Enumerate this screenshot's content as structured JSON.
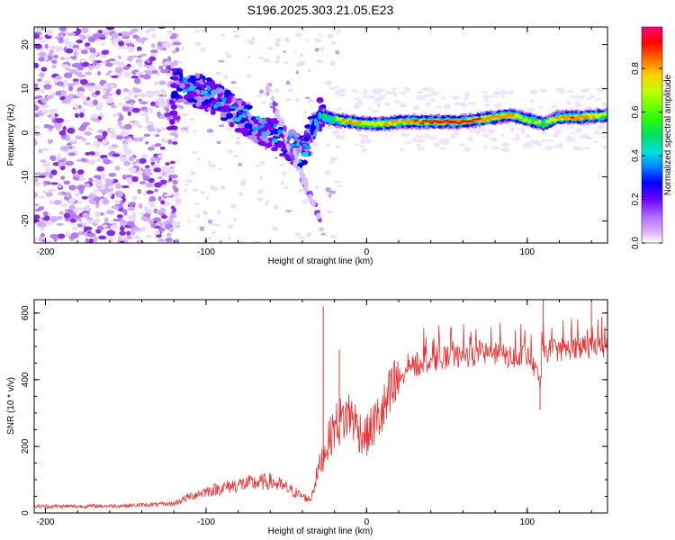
{
  "title": "S196.2025.303.21.05.E23",
  "chart_data": [
    {
      "type": "heatmap",
      "xlabel": "Height of straight line (km)",
      "ylabel": "Frequency (Hz)",
      "xlim": [
        -207,
        150
      ],
      "ylim": [
        -25,
        24
      ],
      "xticks": [
        -200,
        -100,
        0,
        100
      ],
      "yticks": [
        -20,
        -10,
        0,
        10,
        20
      ],
      "colorbar": {
        "label": "Normalized spectral amplitude",
        "range": [
          0,
          0.99
        ],
        "ticks": [
          "0.0",
          "0.2",
          "0.4",
          "0.6",
          "0.8"
        ],
        "tick_values": [
          0,
          0.2,
          0.4,
          0.6,
          0.8
        ]
      },
      "band": [
        {
          "x": -120,
          "f": 11,
          "a": 0.2
        },
        {
          "x": -110,
          "f": 10,
          "a": 0.3
        },
        {
          "x": -100,
          "f": 9,
          "a": 0.35
        },
        {
          "x": -90,
          "f": 7,
          "a": 0.35
        },
        {
          "x": -80,
          "f": 4,
          "a": 0.3
        },
        {
          "x": -70,
          "f": 2,
          "a": 0.3
        },
        {
          "x": -60,
          "f": 0,
          "a": 0.3
        },
        {
          "x": -50,
          "f": -2,
          "a": 0.3
        },
        {
          "x": -40,
          "f": -5,
          "a": 0.35
        },
        {
          "x": -30,
          "f": 4,
          "a": 0.35
        },
        {
          "x": -20,
          "f": 3,
          "a": 0.6
        },
        {
          "x": -10,
          "f": 2.5,
          "a": 0.8
        },
        {
          "x": 0,
          "f": 2,
          "a": 0.65
        },
        {
          "x": 10,
          "f": 2,
          "a": 0.75
        },
        {
          "x": 20,
          "f": 2.5,
          "a": 0.7
        },
        {
          "x": 40,
          "f": 2.5,
          "a": 0.9
        },
        {
          "x": 60,
          "f": 2.5,
          "a": 0.95
        },
        {
          "x": 80,
          "f": 3.5,
          "a": 0.75
        },
        {
          "x": 90,
          "f": 4,
          "a": 0.8
        },
        {
          "x": 100,
          "f": 3,
          "a": 0.55
        },
        {
          "x": 110,
          "f": 2,
          "a": 0.6
        },
        {
          "x": 120,
          "f": 3.5,
          "a": 0.75
        },
        {
          "x": 130,
          "f": 3.5,
          "a": 0.85
        },
        {
          "x": 150,
          "f": 4,
          "a": 0.6
        }
      ]
    },
    {
      "type": "line",
      "xlabel": "Height of straight line (km)",
      "ylabel": "SNR (10 * v/v)",
      "xlim": [
        -207,
        150
      ],
      "ylim": [
        0,
        640
      ],
      "xticks": [
        -200,
        -100,
        0,
        100
      ],
      "yticks": [
        0,
        200,
        400,
        600
      ],
      "color": "#ef3030",
      "series": [
        {
          "name": "SNR",
          "x": [
            -207,
            -180,
            -150,
            -120,
            -110,
            -100,
            -90,
            -80,
            -70,
            -60,
            -50,
            -40,
            -35,
            -30,
            -25,
            -20,
            -15,
            -10,
            -5,
            0,
            5,
            10,
            15,
            20,
            30,
            40,
            50,
            60,
            70,
            80,
            90,
            100,
            108,
            110,
            120,
            130,
            140,
            150
          ],
          "values": [
            20,
            20,
            22,
            28,
            50,
            65,
            75,
            85,
            90,
            95,
            75,
            50,
            40,
            130,
            200,
            260,
            280,
            300,
            250,
            230,
            270,
            300,
            350,
            400,
            440,
            460,
            465,
            470,
            475,
            480,
            465,
            470,
            390,
            485,
            490,
            495,
            498,
            500
          ],
          "peaks": [
            {
              "x": -27,
              "y": 620
            },
            {
              "x": -17,
              "y": 490
            },
            {
              "x": 108,
              "y": 310
            },
            {
              "x": 110,
              "y": 640
            },
            {
              "x": 140,
              "y": 630
            }
          ]
        }
      ]
    }
  ]
}
